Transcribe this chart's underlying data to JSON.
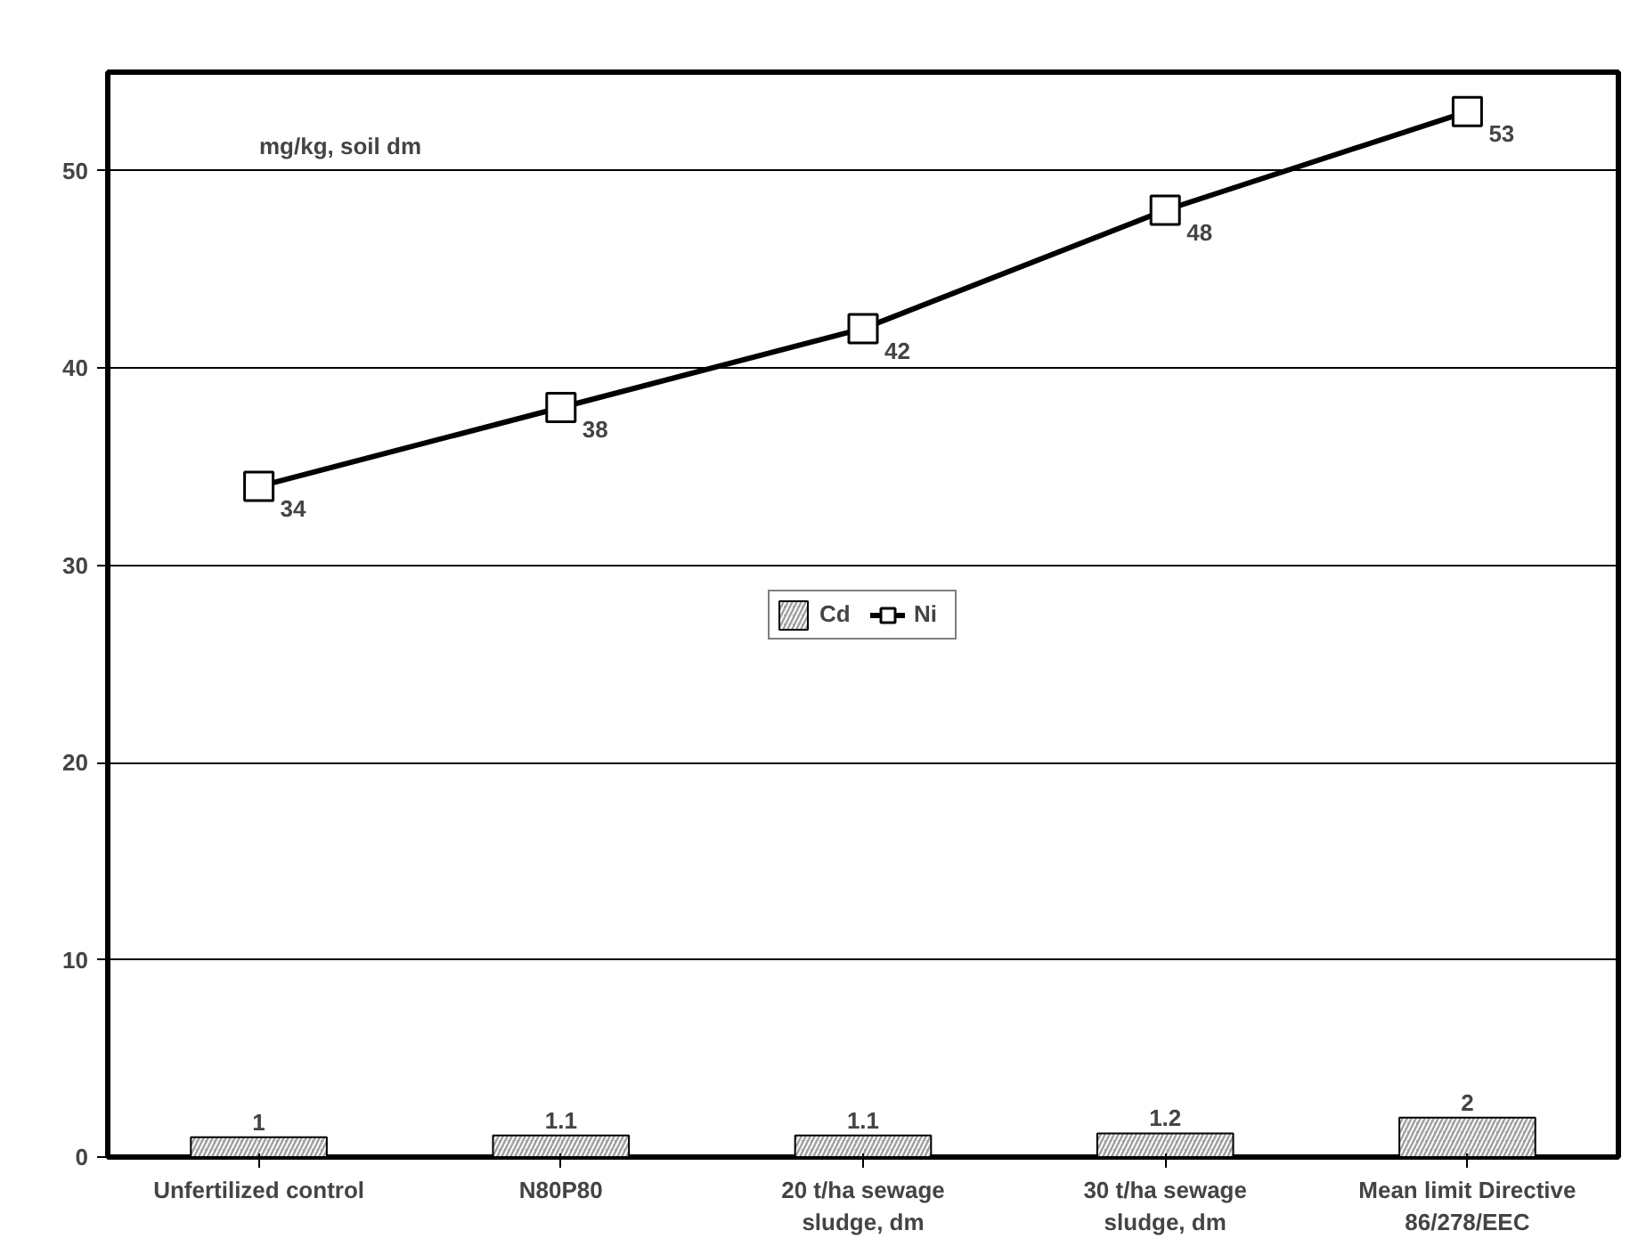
{
  "chart_data": {
    "type": "bar",
    "categories": [
      "Unfertilized control",
      "N80P80",
      "20 t/ha sewage sludge, dm",
      "30 t/ha sewage sludge, dm",
      "Mean limit Directive 86/278/EEC"
    ],
    "series": [
      {
        "name": "Cd",
        "color": "#a0a0a0",
        "values": [
          1,
          1.1,
          1.1,
          1.2,
          2
        ]
      },
      {
        "name": "Ni",
        "type": "line",
        "color": "#000000",
        "marker": "square",
        "values": [
          34,
          38,
          42,
          48,
          53
        ]
      }
    ],
    "ylim": [
      0,
      55
    ],
    "yticks": [
      0,
      10,
      20,
      30,
      40,
      50
    ],
    "grid": "y",
    "legend": "center",
    "data_labels": true,
    "annotations": [
      "mg/kg, soil dm"
    ]
  }
}
